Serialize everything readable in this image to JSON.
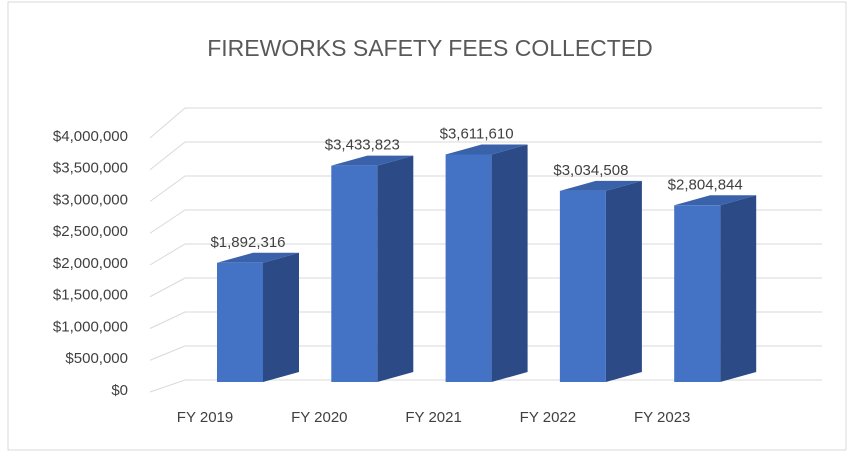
{
  "chart_data": {
    "type": "bar3d",
    "title": "FIREWORKS SAFETY FEES COLLECTED",
    "categories": [
      "FY 2019",
      "FY 2020",
      "FY 2021",
      "FY 2022",
      "FY 2023"
    ],
    "values": [
      1892316,
      3433823,
      3611610,
      3034508,
      2804844
    ],
    "value_labels": [
      "$1,892,316",
      "$3,433,823",
      "$3,611,610",
      "$3,034,508",
      "$2,804,844"
    ],
    "color": "#4472c4",
    "ylim": [
      0,
      4000000
    ],
    "yticks": [
      {
        "value": 0,
        "label": "$0"
      },
      {
        "value": 500000,
        "label": "$500,000"
      },
      {
        "value": 1000000,
        "label": "$1,000,000"
      },
      {
        "value": 1500000,
        "label": "$1,500,000"
      },
      {
        "value": 2000000,
        "label": "$2,000,000"
      },
      {
        "value": 2500000,
        "label": "$2,500,000"
      },
      {
        "value": 3000000,
        "label": "$3,000,000"
      },
      {
        "value": 3500000,
        "label": "$3,500,000"
      },
      {
        "value": 4000000,
        "label": "$4,000,000"
      }
    ],
    "grid": true
  }
}
